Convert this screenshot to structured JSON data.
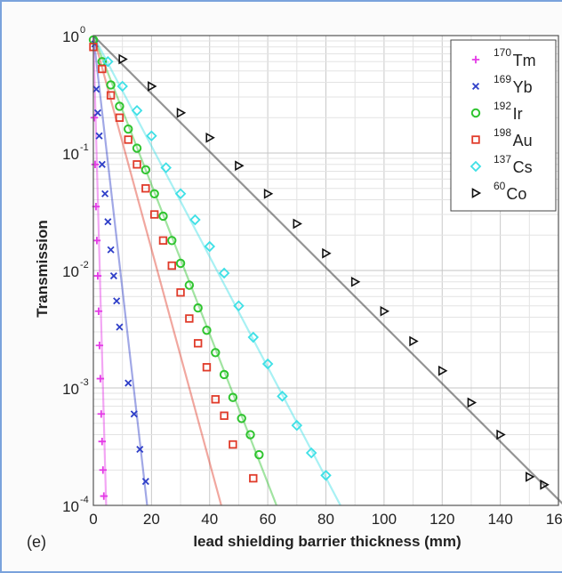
{
  "panel_label": "(e)",
  "chart_data": {
    "type": "scatter",
    "xlabel": "lead shielding barrier thickness (mm)",
    "ylabel": "Transmission",
    "xlim": [
      0,
      160
    ],
    "ylim": [
      0.0001,
      1
    ],
    "yscale": "log",
    "x_ticks": [
      "0",
      "20",
      "40",
      "60",
      "80",
      "100",
      "120",
      "140",
      "160"
    ],
    "y_ticks": [
      {
        "base": "10",
        "exp": "0",
        "value": 1
      },
      {
        "base": "10",
        "exp": "-1",
        "value": 0.1
      },
      {
        "base": "10",
        "exp": "-2",
        "value": 0.01
      },
      {
        "base": "10",
        "exp": "-3",
        "value": 0.001
      },
      {
        "base": "10",
        "exp": "-4",
        "value": 0.0001
      }
    ],
    "grid": true,
    "legend_position": "top-right",
    "series": [
      {
        "name": "Tm",
        "mass": "170",
        "color": "#e43ae6",
        "marker": "plus",
        "x": [
          0.3,
          0.6,
          0.9,
          1.2,
          1.5,
          1.8,
          2.1,
          2.4,
          2.7,
          3.0,
          3.3,
          3.6
        ],
        "y": [
          0.2,
          0.08,
          0.035,
          0.018,
          0.009,
          0.0045,
          0.0023,
          0.0012,
          0.0006,
          0.00035,
          0.0002,
          0.00012
        ],
        "fit": [
          [
            0,
            1
          ],
          [
            4.4,
            0.0001
          ]
        ]
      },
      {
        "name": "Yb",
        "mass": "169",
        "color": "#2f3fc8",
        "marker": "x",
        "x": [
          0.5,
          1,
          1.5,
          2,
          3,
          4,
          5,
          6,
          7,
          8,
          9,
          12,
          14,
          16,
          18
        ],
        "y": [
          0.85,
          0.35,
          0.22,
          0.14,
          0.08,
          0.045,
          0.026,
          0.015,
          0.009,
          0.0055,
          0.0033,
          0.0011,
          0.0006,
          0.0003,
          0.00016
        ],
        "fit": [
          [
            0,
            1
          ],
          [
            18.5,
            0.0001
          ]
        ]
      },
      {
        "name": "Ir",
        "mass": "192",
        "color": "#2fc42f",
        "marker": "circle",
        "x": [
          0,
          3,
          6,
          9,
          12,
          15,
          18,
          21,
          24,
          27,
          30,
          33,
          36,
          39,
          42,
          45,
          48,
          51,
          54,
          57
        ],
        "y": [
          0.92,
          0.6,
          0.38,
          0.25,
          0.16,
          0.11,
          0.072,
          0.045,
          0.029,
          0.018,
          0.0115,
          0.0075,
          0.0048,
          0.0031,
          0.002,
          0.0013,
          0.00083,
          0.00055,
          0.0004,
          0.00027
        ],
        "fit": [
          [
            0,
            1
          ],
          [
            63,
            0.0001
          ]
        ]
      },
      {
        "name": "Au",
        "mass": "198",
        "color": "#e03b2a",
        "marker": "square",
        "x": [
          0,
          3,
          6,
          9,
          12,
          15,
          18,
          21,
          24,
          27,
          30,
          33,
          36,
          39,
          42,
          45,
          48,
          55
        ],
        "y": [
          0.8,
          0.52,
          0.31,
          0.2,
          0.13,
          0.08,
          0.05,
          0.03,
          0.018,
          0.011,
          0.0065,
          0.0039,
          0.0024,
          0.0015,
          0.0008,
          0.00058,
          0.00033,
          0.00017
        ],
        "fit": [
          [
            0,
            1
          ],
          [
            44,
            0.0001
          ]
        ]
      },
      {
        "name": "Cs",
        "mass": "137",
        "color": "#3fe0e6",
        "marker": "diamond",
        "x": [
          5,
          10,
          15,
          20,
          25,
          30,
          35,
          40,
          45,
          50,
          55,
          60,
          65,
          70,
          75,
          80
        ],
        "y": [
          0.6,
          0.37,
          0.23,
          0.14,
          0.075,
          0.045,
          0.027,
          0.016,
          0.0095,
          0.005,
          0.0027,
          0.0016,
          0.00085,
          0.00048,
          0.00028,
          0.00018
        ],
        "fit": [
          [
            0,
            1
          ],
          [
            85,
            0.0001
          ]
        ]
      },
      {
        "name": "Co",
        "mass": "60",
        "color": "#111111",
        "marker": "triangle-right",
        "x": [
          10,
          20,
          30,
          40,
          50,
          60,
          70,
          80,
          90,
          100,
          110,
          120,
          130,
          140,
          150,
          155
        ],
        "y": [
          0.63,
          0.37,
          0.22,
          0.135,
          0.078,
          0.045,
          0.025,
          0.014,
          0.008,
          0.0045,
          0.0025,
          0.0014,
          0.00075,
          0.0004,
          0.000175,
          0.00015
        ],
        "fit": [
          [
            0,
            1
          ],
          [
            162,
            0.0001
          ]
        ]
      }
    ]
  }
}
